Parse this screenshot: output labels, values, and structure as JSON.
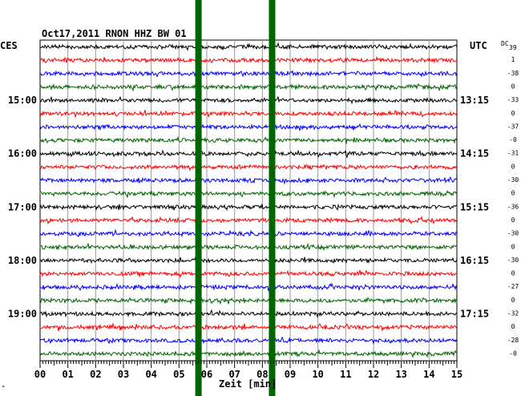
{
  "chart_data": {
    "type": "line",
    "title": "Oct17,2011   RNON HHZ BW 01",
    "left_header": "CES",
    "right_header": "UTC",
    "offset_header_prefix": "DC",
    "offset_header_value": "39",
    "xlabel": "Zeit [min]",
    "xlim": [
      0,
      15
    ],
    "x_ticks": [
      "00",
      "01",
      "02",
      "03",
      "04",
      "05",
      "06",
      "07",
      "08",
      "09",
      "10",
      "11",
      "12",
      "13",
      "14",
      "15"
    ],
    "trace_colors": [
      "#000000",
      "#ff0000",
      "#0000ff",
      "#006400"
    ],
    "trace_count": 24,
    "left_hour_labels": [
      "15:00",
      "16:00",
      "17:00",
      "18:00",
      "19:00"
    ],
    "right_hour_labels": [
      "13:15",
      "14:15",
      "15:15",
      "16:15",
      "17:15"
    ],
    "offset_labels": [
      "1",
      "-38",
      "0",
      "-33",
      "0",
      "-37",
      "-0",
      "-31",
      "0",
      "-30",
      "0",
      "-36",
      "0",
      "-30",
      "0",
      "-30",
      "0",
      "-27",
      "0",
      "-32",
      "0",
      "-28",
      "-0"
    ],
    "marker_color": "#006400",
    "markers_min": [
      5.7,
      8.35
    ],
    "footer_mark": "ᴹ"
  }
}
